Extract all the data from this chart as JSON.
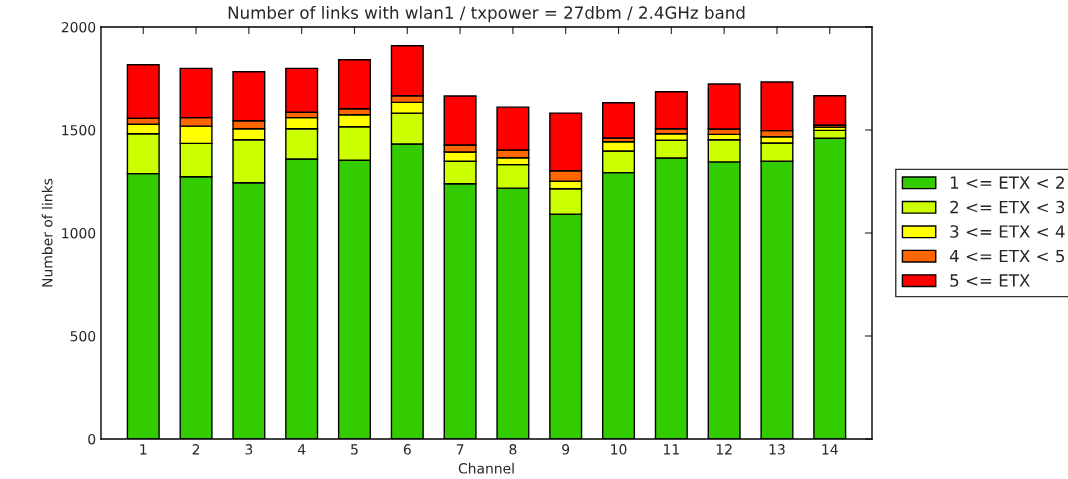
{
  "chart_data": {
    "type": "bar",
    "title": "Number of links with wlan1 / txpower = 27dbm / 2.4GHz band",
    "xlabel": "Channel",
    "ylabel": "Number of links",
    "categories": [
      "1",
      "2",
      "3",
      "4",
      "5",
      "6",
      "7",
      "8",
      "9",
      "10",
      "11",
      "12",
      "13",
      "14"
    ],
    "stacked": true,
    "ylim": [
      0,
      2000
    ],
    "yticks": [
      0,
      500,
      1000,
      1500,
      2000
    ],
    "grid": false,
    "legend": "right",
    "series": [
      {
        "name": "1 <= ETX < 2",
        "color": "#33cc00",
        "values": [
          1288,
          1273,
          1244,
          1359,
          1353,
          1432,
          1239,
          1218,
          1091,
          1293,
          1364,
          1345,
          1348,
          1460
        ]
      },
      {
        "name": "2 <= ETX < 3",
        "color": "#ccff00",
        "values": [
          194,
          162,
          209,
          147,
          163,
          150,
          109,
          114,
          124,
          105,
          86,
          108,
          89,
          38
        ]
      },
      {
        "name": "3 <= ETX < 4",
        "color": "#ffff00",
        "values": [
          46,
          84,
          53,
          54,
          58,
          52,
          45,
          33,
          37,
          45,
          32,
          26,
          30,
          16
        ]
      },
      {
        "name": "4 <= ETX < 5",
        "color": "#ff6600",
        "values": [
          29,
          41,
          39,
          26,
          29,
          32,
          34,
          38,
          50,
          18,
          24,
          26,
          30,
          10
        ]
      },
      {
        "name": "5 <= ETX",
        "color": "#ff0000",
        "values": [
          260,
          239,
          238,
          213,
          238,
          243,
          238,
          208,
          280,
          171,
          180,
          218,
          236,
          142
        ]
      }
    ]
  }
}
